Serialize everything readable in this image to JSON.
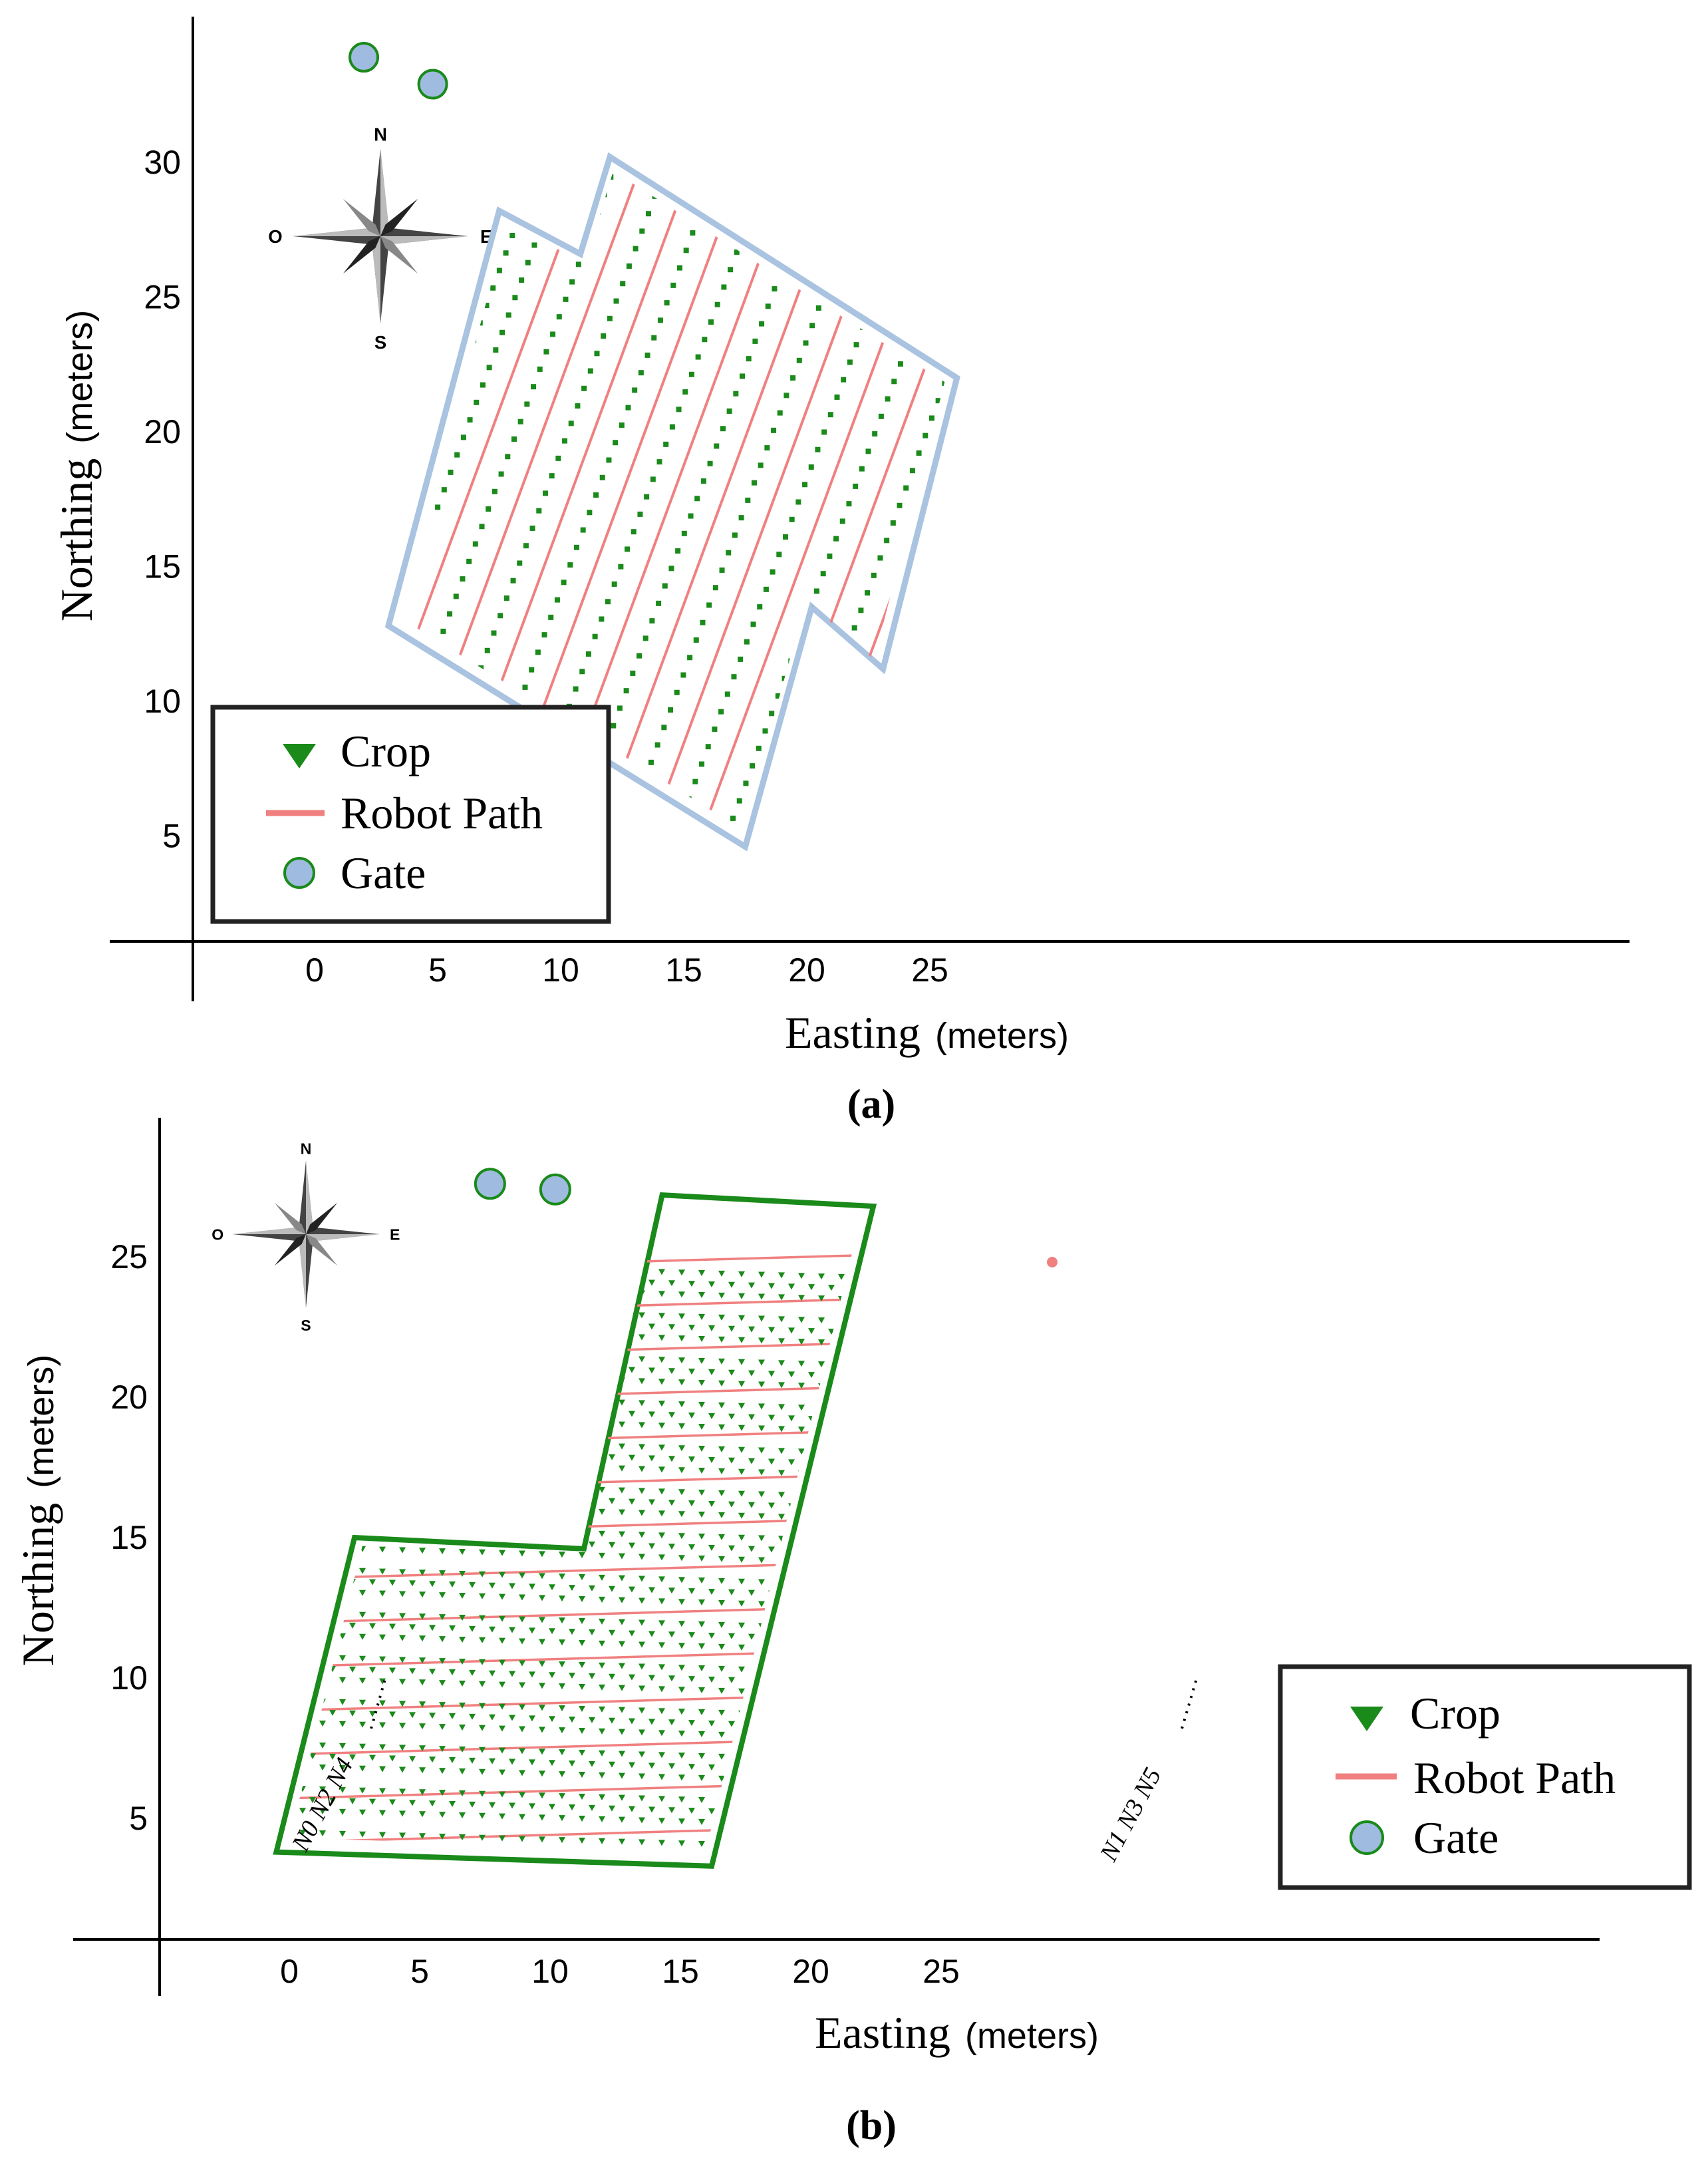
{
  "colors": {
    "crop": "#1a8a1a",
    "path": "#f08080",
    "gate_fill": "#9fbbe0",
    "gate_edge": "#1a8a1a",
    "boundary_a": "#a9c3e0",
    "boundary_b": "#1a8a1a"
  },
  "chart_data": [
    {
      "type": "scatter",
      "caption": "(a)",
      "xlabel": "Easting",
      "xunit": "(meters)",
      "ylabel": "Northing",
      "yunit": "(meters)",
      "xticks": [
        "0",
        "5",
        "10",
        "15",
        "20",
        "25"
      ],
      "yticks": [
        "5",
        "10",
        "15",
        "20",
        "25",
        "30"
      ],
      "compass": {
        "n": "N",
        "s": "S",
        "e": "E",
        "w": "O"
      },
      "legend": {
        "crop": "Crop",
        "path": "Robot Path",
        "gate": "Gate"
      },
      "gates": [
        {
          "x": 2.0,
          "y": 33.9
        },
        {
          "x": 4.8,
          "y": 32.9
        }
      ],
      "boundary": [
        [
          3.0,
          12.8
        ],
        [
          7.5,
          28.2
        ],
        [
          10.8,
          26.6
        ],
        [
          12.0,
          30.2
        ],
        [
          26.1,
          22.0
        ],
        [
          23.1,
          11.2
        ],
        [
          20.2,
          13.5
        ],
        [
          17.5,
          4.6
        ]
      ],
      "row_count": 23
    },
    {
      "type": "scatter",
      "caption": "(b)",
      "xlabel": "Easting",
      "xunit": "(meters)",
      "ylabel": "Northing",
      "yunit": "(meters)",
      "xticks": [
        "0",
        "5",
        "10",
        "15",
        "20",
        "25"
      ],
      "yticks": [
        "5",
        "10",
        "15",
        "20",
        "25"
      ],
      "compass": {
        "n": "N",
        "s": "S",
        "e": "E",
        "w": "O"
      },
      "legend": {
        "crop": "Crop",
        "path": "Robot Path",
        "gate": "Gate"
      },
      "gates": [
        {
          "x": 7.7,
          "y": 27.6
        },
        {
          "x": 10.2,
          "y": 27.4
        }
      ],
      "boundary": [
        [
          -0.5,
          3.8
        ],
        [
          2.5,
          15.0
        ],
        [
          11.3,
          14.6
        ],
        [
          14.3,
          27.2
        ],
        [
          22.4,
          26.8
        ],
        [
          16.2,
          3.3
        ]
      ],
      "node_labels_left": "N0 N2 N4",
      "node_labels_right": "N1 N3 N5"
    }
  ]
}
